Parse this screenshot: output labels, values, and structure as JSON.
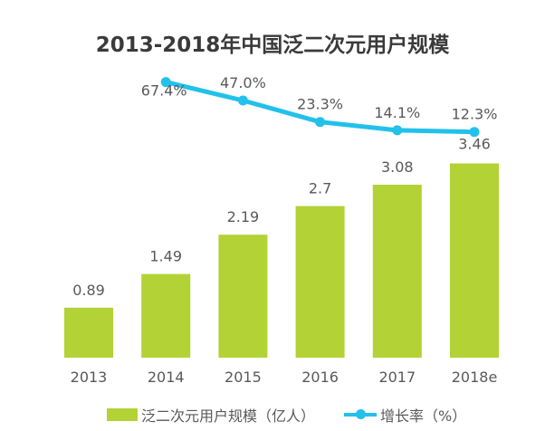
{
  "chart_data": {
    "type": "bar+line",
    "title": "2013-2018年中国泛二次元用户规模",
    "categories": [
      "2013",
      "2014",
      "2015",
      "2016",
      "2017",
      "2018e"
    ],
    "series": [
      {
        "name": "泛二次元用户规模（亿人）",
        "type": "bar",
        "values": [
          0.89,
          1.49,
          2.19,
          2.7,
          3.08,
          3.46
        ],
        "labels": [
          "0.89",
          "1.49",
          "2.19",
          "2.7",
          "3.08",
          "3.46"
        ],
        "color": "#b2d235"
      },
      {
        "name": "增长率（%）",
        "type": "line",
        "values": [
          null,
          67.4,
          47.0,
          23.3,
          14.1,
          12.3
        ],
        "labels": [
          "",
          "67.4%",
          "47.0%",
          "23.3%",
          "14.1%",
          "12.3%"
        ],
        "color": "#22c1eb"
      }
    ],
    "legend": "bottom",
    "grid": false
  }
}
